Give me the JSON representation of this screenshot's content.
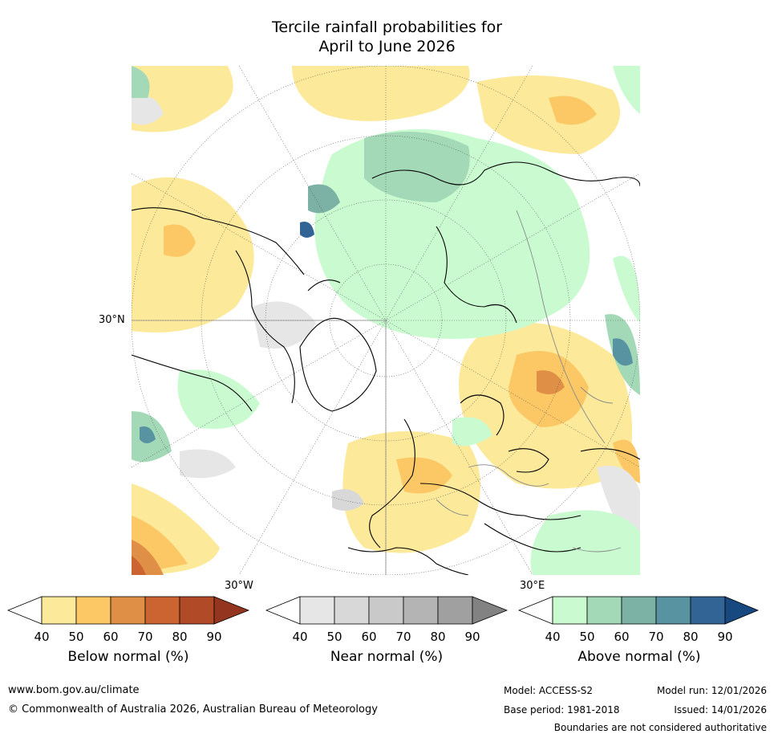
{
  "title_line1": "Tercile rainfall probabilities for",
  "title_line2": "April to June 2026",
  "map_labels": {
    "lat_30n": "30°N",
    "lon_30w": "30°W",
    "lon_30e": "30°E"
  },
  "colorbars": [
    {
      "name": "Below normal (%)",
      "ticks": [
        "40",
        "50",
        "60",
        "70",
        "80",
        "90"
      ],
      "colors": [
        "#ffffff",
        "#fde99a",
        "#fcc865",
        "#e09046",
        "#cc6431",
        "#b14a26",
        "#943520"
      ]
    },
    {
      "name": "Near normal (%)",
      "ticks": [
        "40",
        "50",
        "60",
        "70",
        "80",
        "90"
      ],
      "colors": [
        "#ffffff",
        "#e6e6e6",
        "#d8d8d8",
        "#c9c9c9",
        "#b4b4b4",
        "#a0a0a0",
        "#828282"
      ]
    },
    {
      "name": "Above normal (%)",
      "ticks": [
        "40",
        "50",
        "60",
        "70",
        "80",
        "90"
      ],
      "colors": [
        "#ffffff",
        "#cafbd0",
        "#a4d9b8",
        "#7cb2a6",
        "#5893a1",
        "#336496",
        "#17487f"
      ]
    }
  ],
  "footer": {
    "website": "www.bom.gov.au/climate",
    "copyright": "© Commonwealth of Australia 2026, Australian Bureau of Meteorology",
    "model": "Model: ACCESS-S2",
    "base_period": "Base period: 1981-2018",
    "model_run": "Model run: 12/01/2026",
    "issued": "Issued: 14/01/2026",
    "disclaimer": "Boundaries are not considered authoritative"
  }
}
